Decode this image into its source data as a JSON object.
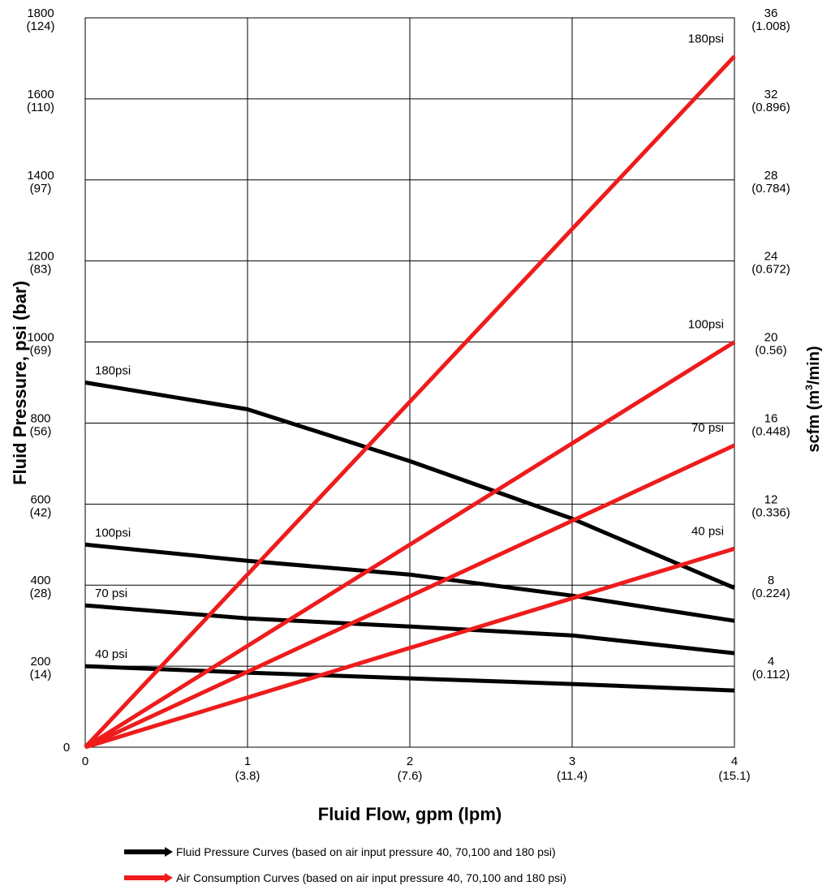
{
  "chart_data": {
    "type": "line",
    "title": "",
    "xlabel": "Fluid Flow, gpm (lpm)",
    "ylabel_left": "Fluid Pressure,  psi (bar)",
    "ylabel_right_main": "scfm (m",
    "ylabel_right_sup": "3",
    "ylabel_right_tail": "/min)",
    "xlim": [
      0,
      4
    ],
    "ylim_left": [
      0,
      1800
    ],
    "ylim_right": [
      0,
      36
    ],
    "grid": true,
    "x_ticks": [
      {
        "value": 0,
        "label": "0",
        "sub": ""
      },
      {
        "value": 1,
        "label": "1",
        "sub": "(3.8)"
      },
      {
        "value": 2,
        "label": "2",
        "sub": "(7.6)"
      },
      {
        "value": 3,
        "label": "3",
        "sub": "(11.4)"
      },
      {
        "value": 4,
        "label": "4",
        "sub": "(15.1)"
      }
    ],
    "y_left_ticks": [
      {
        "value": 0,
        "label": "0",
        "sub": ""
      },
      {
        "value": 200,
        "label": "200",
        "sub": "(14)"
      },
      {
        "value": 400,
        "label": "400",
        "sub": "(28)"
      },
      {
        "value": 600,
        "label": "600",
        "sub": "(42)"
      },
      {
        "value": 800,
        "label": "800",
        "sub": "(56)"
      },
      {
        "value": 1000,
        "label": "1000",
        "sub": "(69)"
      },
      {
        "value": 1200,
        "label": "1200",
        "sub": "(83)"
      },
      {
        "value": 1400,
        "label": "1400",
        "sub": "(97)"
      },
      {
        "value": 1600,
        "label": "1600",
        "sub": "(110)"
      },
      {
        "value": 1800,
        "label": "1800",
        "sub": "(124)"
      }
    ],
    "y_right_ticks": [
      {
        "value": 4,
        "label": "4",
        "sub": "(0.112)"
      },
      {
        "value": 8,
        "label": "8",
        "sub": "(0.224)"
      },
      {
        "value": 12,
        "label": "12",
        "sub": "(0.336)"
      },
      {
        "value": 16,
        "label": "16",
        "sub": "(0.448)"
      },
      {
        "value": 20,
        "label": "20",
        "sub": "(0.56)"
      },
      {
        "value": 24,
        "label": "24",
        "sub": "(0.672)"
      },
      {
        "value": 28,
        "label": "28",
        "sub": "(0.784)"
      },
      {
        "value": 32,
        "label": "32",
        "sub": "(0.896)"
      },
      {
        "value": 36,
        "label": "36",
        "sub": "(1.008)"
      }
    ],
    "fluid_pressure_series": [
      {
        "name": "180psi",
        "color": "#000000",
        "x": [
          0,
          1,
          2,
          3,
          4
        ],
        "y": [
          900,
          834,
          706,
          564,
          393
        ]
      },
      {
        "name": "100psi",
        "color": "#000000",
        "x": [
          0,
          1,
          2,
          3,
          4
        ],
        "y": [
          500,
          460,
          426,
          374,
          312
        ]
      },
      {
        "name": "70 psi",
        "color": "#000000",
        "x": [
          0,
          1,
          2,
          3,
          4
        ],
        "y": [
          350,
          318,
          298,
          276,
          232
        ]
      },
      {
        "name": "40 psi",
        "color": "#000000",
        "x": [
          0,
          1,
          2,
          3,
          4
        ],
        "y": [
          200,
          184,
          170,
          156,
          140
        ]
      }
    ],
    "air_consumption_series": [
      {
        "name": "180psi",
        "color": "#ee1c1c",
        "x": [
          0,
          4
        ],
        "y": [
          0,
          34.1
        ]
      },
      {
        "name": "100psi",
        "color": "#ee1c1c",
        "x": [
          0,
          4
        ],
        "y": [
          0,
          20
        ]
      },
      {
        "name": "70 psi",
        "color": "#ee1c1c",
        "x": [
          0,
          4
        ],
        "y": [
          0,
          14.9
        ]
      },
      {
        "name": "40 psi",
        "color": "#ee1c1c",
        "x": [
          0,
          4
        ],
        "y": [
          0,
          9.8
        ]
      }
    ],
    "legend": [
      {
        "label": "Fluid Pressure Curves (based on air input pressure 40, 70,100 and 180 psi)",
        "color": "#000000"
      },
      {
        "label": "Air Consumption Curves (based on air input pressure 40, 70,100 and 180 psi)",
        "color": "#ee1c1c"
      }
    ],
    "legend_position": "bottom-center"
  }
}
